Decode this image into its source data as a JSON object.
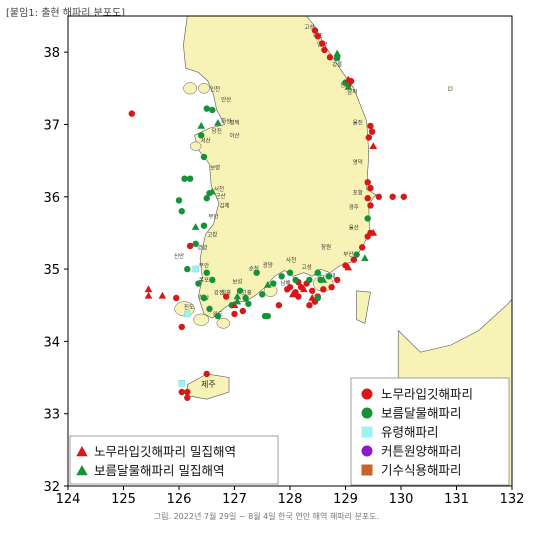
{
  "header": "[붙임1: 출현 해파리 분포도]",
  "caption": "그림. 2022년 7월 29일 ~ 8월 4일 한국 연안 해역 해파리 분포도.",
  "axes": {
    "x_ticks": [
      "124",
      "125",
      "126",
      "127",
      "128",
      "129",
      "130",
      "131",
      "132"
    ],
    "y_ticks": [
      "38",
      "37",
      "36",
      "35",
      "34",
      "33",
      "32"
    ]
  },
  "colors": {
    "land": "#f7f3b6",
    "sea": "#ffffff",
    "nomura": "#d81818",
    "moon": "#14923a",
    "ephyra": "#9ff2f2",
    "cotton": "#8c1ac8",
    "stalked": "#c8642a"
  },
  "island_label": "제주",
  "places": [
    {
      "name": "고성",
      "lon": 128.35,
      "lat": 38.32
    },
    {
      "name": "속초",
      "lon": 128.5,
      "lat": 38.2
    },
    {
      "name": "양양",
      "lon": 128.58,
      "lat": 38.08
    },
    {
      "name": "강릉",
      "lon": 128.85,
      "lat": 37.8
    },
    {
      "name": "동해",
      "lon": 129.0,
      "lat": 37.52
    },
    {
      "name": "삼척",
      "lon": 129.12,
      "lat": 37.42
    },
    {
      "name": "울진",
      "lon": 129.22,
      "lat": 37.0
    },
    {
      "name": "영덕",
      "lon": 129.22,
      "lat": 36.45
    },
    {
      "name": "포항",
      "lon": 129.22,
      "lat": 36.03
    },
    {
      "name": "경주",
      "lon": 129.15,
      "lat": 35.83
    },
    {
      "name": "울산",
      "lon": 129.15,
      "lat": 35.55
    },
    {
      "name": "부산",
      "lon": 129.05,
      "lat": 35.18
    },
    {
      "name": "거제",
      "lon": 128.72,
      "lat": 34.88
    },
    {
      "name": "창원",
      "lon": 128.65,
      "lat": 35.28
    },
    {
      "name": "고성",
      "lon": 128.3,
      "lat": 35.0
    },
    {
      "name": "사천",
      "lon": 128.02,
      "lat": 35.1
    },
    {
      "name": "남해",
      "lon": 127.92,
      "lat": 34.78
    },
    {
      "name": "광양",
      "lon": 127.6,
      "lat": 35.03
    },
    {
      "name": "순천",
      "lon": 127.35,
      "lat": 34.98
    },
    {
      "name": "고흥",
      "lon": 127.22,
      "lat": 34.65
    },
    {
      "name": "보성",
      "lon": 127.05,
      "lat": 34.8
    },
    {
      "name": "장흥",
      "lon": 126.85,
      "lat": 34.65
    },
    {
      "name": "강진",
      "lon": 126.72,
      "lat": 34.65
    },
    {
      "name": "완도",
      "lon": 126.7,
      "lat": 34.35
    },
    {
      "name": "진도",
      "lon": 126.18,
      "lat": 34.45
    },
    {
      "name": "해남",
      "lon": 126.45,
      "lat": 34.58
    },
    {
      "name": "목포",
      "lon": 126.45,
      "lat": 34.82
    },
    {
      "name": "무안",
      "lon": 126.45,
      "lat": 35.02
    },
    {
      "name": "영광",
      "lon": 126.42,
      "lat": 35.27
    },
    {
      "name": "고창",
      "lon": 126.6,
      "lat": 35.45
    },
    {
      "name": "신안",
      "lon": 126.0,
      "lat": 35.15
    },
    {
      "name": "부안",
      "lon": 126.62,
      "lat": 35.7
    },
    {
      "name": "김제",
      "lon": 126.82,
      "lat": 35.85
    },
    {
      "name": "군산",
      "lon": 126.75,
      "lat": 35.98
    },
    {
      "name": "서천",
      "lon": 126.72,
      "lat": 36.08
    },
    {
      "name": "보령",
      "lon": 126.65,
      "lat": 36.38
    },
    {
      "name": "서산",
      "lon": 126.48,
      "lat": 36.75
    },
    {
      "name": "당진",
      "lon": 126.68,
      "lat": 36.88
    },
    {
      "name": "아산",
      "lon": 127.0,
      "lat": 36.82
    },
    {
      "name": "화성",
      "lon": 126.85,
      "lat": 37.02
    },
    {
      "name": "평택",
      "lon": 127.0,
      "lat": 37.0
    },
    {
      "name": "안산",
      "lon": 126.85,
      "lat": 37.32
    },
    {
      "name": "인천",
      "lon": 126.65,
      "lat": 37.46
    }
  ],
  "nomura_points": [
    {
      "lon": 128.45,
      "lat": 38.3
    },
    {
      "lon": 128.5,
      "lat": 38.22
    },
    {
      "lon": 128.58,
      "lat": 38.12
    },
    {
      "lon": 128.62,
      "lat": 38.03
    },
    {
      "lon": 128.72,
      "lat": 37.93
    },
    {
      "lon": 129.05,
      "lat": 37.55
    },
    {
      "lon": 129.1,
      "lat": 37.6
    },
    {
      "lon": 129.45,
      "lat": 36.98
    },
    {
      "lon": 129.48,
      "lat": 36.9
    },
    {
      "lon": 129.42,
      "lat": 36.82
    },
    {
      "lon": 129.4,
      "lat": 36.2
    },
    {
      "lon": 129.45,
      "lat": 36.12
    },
    {
      "lon": 129.6,
      "lat": 36.0
    },
    {
      "lon": 129.85,
      "lat": 36.0
    },
    {
      "lon": 130.05,
      "lat": 36.0
    },
    {
      "lon": 129.4,
      "lat": 35.98
    },
    {
      "lon": 129.45,
      "lat": 35.88
    },
    {
      "lon": 129.45,
      "lat": 35.5
    },
    {
      "lon": 129.4,
      "lat": 35.45
    },
    {
      "lon": 129.3,
      "lat": 35.3
    },
    {
      "lon": 129.15,
      "lat": 35.13
    },
    {
      "lon": 129.0,
      "lat": 35.05
    },
    {
      "lon": 128.85,
      "lat": 34.85
    },
    {
      "lon": 128.75,
      "lat": 34.75
    },
    {
      "lon": 128.6,
      "lat": 34.72
    },
    {
      "lon": 128.5,
      "lat": 34.62
    },
    {
      "lon": 128.4,
      "lat": 34.7
    },
    {
      "lon": 128.3,
      "lat": 34.8
    },
    {
      "lon": 128.2,
      "lat": 34.75
    },
    {
      "lon": 128.1,
      "lat": 34.68
    },
    {
      "lon": 128.0,
      "lat": 34.75
    },
    {
      "lon": 128.15,
      "lat": 34.62
    },
    {
      "lon": 128.45,
      "lat": 34.55
    },
    {
      "lon": 128.35,
      "lat": 34.5
    },
    {
      "lon": 127.8,
      "lat": 34.5
    },
    {
      "lon": 127.0,
      "lat": 34.38
    },
    {
      "lon": 127.15,
      "lat": 34.42
    },
    {
      "lon": 126.85,
      "lat": 34.62
    },
    {
      "lon": 126.05,
      "lat": 34.2
    },
    {
      "lon": 125.95,
      "lat": 34.6
    },
    {
      "lon": 126.2,
      "lat": 35.32
    },
    {
      "lon": 125.15,
      "lat": 37.15
    },
    {
      "lon": 126.5,
      "lat": 33.55
    },
    {
      "lon": 126.05,
      "lat": 33.3
    },
    {
      "lon": 126.15,
      "lat": 33.22
    },
    {
      "lon": 126.15,
      "lat": 33.3
    },
    {
      "lon": 127.95,
      "lat": 34.72
    },
    {
      "lon": 128.15,
      "lat": 34.82
    }
  ],
  "moon_points": [
    {
      "lon": 128.85,
      "lat": 37.92
    },
    {
      "lon": 129.0,
      "lat": 37.58
    },
    {
      "lon": 126.5,
      "lat": 37.22
    },
    {
      "lon": 126.6,
      "lat": 37.2
    },
    {
      "lon": 126.4,
      "lat": 36.85
    },
    {
      "lon": 126.45,
      "lat": 36.55
    },
    {
      "lon": 126.1,
      "lat": 36.25
    },
    {
      "lon": 126.2,
      "lat": 36.25
    },
    {
      "lon": 126.0,
      "lat": 35.95
    },
    {
      "lon": 126.05,
      "lat": 35.8
    },
    {
      "lon": 126.55,
      "lat": 36.05
    },
    {
      "lon": 126.5,
      "lat": 35.98
    },
    {
      "lon": 126.45,
      "lat": 35.6
    },
    {
      "lon": 126.3,
      "lat": 35.35
    },
    {
      "lon": 126.15,
      "lat": 35.0
    },
    {
      "lon": 126.5,
      "lat": 34.95
    },
    {
      "lon": 126.6,
      "lat": 34.85
    },
    {
      "lon": 126.35,
      "lat": 34.8
    },
    {
      "lon": 126.45,
      "lat": 34.6
    },
    {
      "lon": 126.55,
      "lat": 34.45
    },
    {
      "lon": 126.7,
      "lat": 34.35
    },
    {
      "lon": 126.95,
      "lat": 34.5
    },
    {
      "lon": 127.2,
      "lat": 34.6
    },
    {
      "lon": 127.25,
      "lat": 34.52
    },
    {
      "lon": 127.5,
      "lat": 34.65
    },
    {
      "lon": 127.55,
      "lat": 34.35
    },
    {
      "lon": 127.6,
      "lat": 34.35
    },
    {
      "lon": 127.7,
      "lat": 34.8
    },
    {
      "lon": 127.85,
      "lat": 34.9
    },
    {
      "lon": 128.0,
      "lat": 34.95
    },
    {
      "lon": 128.1,
      "lat": 34.85
    },
    {
      "lon": 128.35,
      "lat": 34.85
    },
    {
      "lon": 128.5,
      "lat": 34.95
    },
    {
      "lon": 128.55,
      "lat": 34.85
    },
    {
      "lon": 128.7,
      "lat": 34.9
    },
    {
      "lon": 129.2,
      "lat": 35.2
    },
    {
      "lon": 129.4,
      "lat": 35.7
    },
    {
      "lon": 128.5,
      "lat": 34.6
    },
    {
      "lon": 127.1,
      "lat": 34.7
    },
    {
      "lon": 127.4,
      "lat": 34.95
    }
  ],
  "nomura_dense": [
    {
      "lon": 129.05,
      "lat": 37.62
    },
    {
      "lon": 129.5,
      "lat": 36.7
    },
    {
      "lon": 129.5,
      "lat": 35.5
    },
    {
      "lon": 129.05,
      "lat": 35.02
    },
    {
      "lon": 128.25,
      "lat": 34.72
    },
    {
      "lon": 128.05,
      "lat": 34.65
    },
    {
      "lon": 127.0,
      "lat": 34.5
    },
    {
      "lon": 125.45,
      "lat": 34.72
    },
    {
      "lon": 125.45,
      "lat": 34.63
    },
    {
      "lon": 125.7,
      "lat": 34.63
    },
    {
      "lon": 128.4,
      "lat": 34.6
    }
  ],
  "moon_dense": [
    {
      "lon": 128.85,
      "lat": 37.98
    },
    {
      "lon": 129.05,
      "lat": 37.52
    },
    {
      "lon": 126.4,
      "lat": 36.98
    },
    {
      "lon": 126.7,
      "lat": 37.02
    },
    {
      "lon": 126.6,
      "lat": 36.07
    },
    {
      "lon": 126.3,
      "lat": 35.58
    },
    {
      "lon": 127.05,
      "lat": 34.55
    },
    {
      "lon": 127.05,
      "lat": 34.62
    },
    {
      "lon": 127.6,
      "lat": 34.78
    },
    {
      "lon": 128.5,
      "lat": 34.95
    },
    {
      "lon": 128.6,
      "lat": 34.85
    },
    {
      "lon": 129.35,
      "lat": 35.15
    }
  ],
  "ephyra_points": [
    {
      "lon": 126.05,
      "lat": 33.42
    },
    {
      "lon": 126.15,
      "lat": 34.38
    },
    {
      "lon": 126.3,
      "lat": 35.0
    }
  ],
  "legend_species": [
    {
      "key": "nomura",
      "shape": "circle",
      "label": "노무라입깃해파리"
    },
    {
      "key": "moon",
      "shape": "circle",
      "label": "보름달물해파리"
    },
    {
      "key": "ephyra",
      "shape": "square",
      "label": "유령해파리"
    },
    {
      "key": "cotton",
      "shape": "circle",
      "label": "커튼원양해파리"
    },
    {
      "key": "stalked",
      "shape": "square",
      "label": "기수식용해파리"
    }
  ],
  "legend_dense": [
    {
      "key": "nomura",
      "shape": "triangle",
      "label": "노무라입깃해파리 밀집해역"
    },
    {
      "key": "moon",
      "shape": "triangle",
      "label": "보름달물해파리 밀집해역"
    }
  ]
}
